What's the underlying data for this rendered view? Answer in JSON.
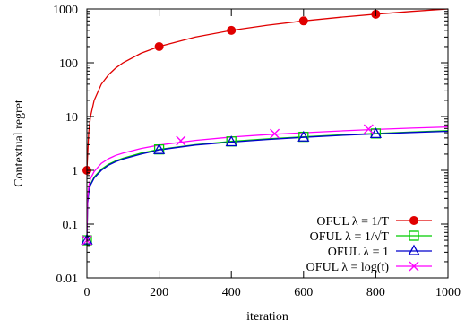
{
  "chart_data": {
    "type": "line",
    "title": "",
    "xlabel": "iteration",
    "ylabel": "Contextual regret",
    "xlim": [
      0,
      1000
    ],
    "ylim": [
      0.01,
      1000
    ],
    "yscale": "log",
    "x_ticks": [
      0,
      200,
      400,
      600,
      800,
      1000
    ],
    "x_tick_labels": [
      "0",
      "200",
      "400",
      "600",
      "800",
      "1000"
    ],
    "y_ticks": [
      0.01,
      0.1,
      1,
      10,
      100,
      1000
    ],
    "y_tick_labels": [
      "0.01",
      "0.1",
      "1",
      "10",
      "100",
      "1000"
    ],
    "legend_position": "bottom-right",
    "grid": false,
    "series": [
      {
        "name": "OFUL λ = 1/T",
        "color": "#e00000",
        "marker": "filled-circle",
        "x": [
          0,
          5,
          10,
          20,
          40,
          60,
          80,
          100,
          150,
          200,
          300,
          400,
          500,
          600,
          700,
          800,
          900,
          1000
        ],
        "y": [
          1,
          5,
          10,
          20,
          40,
          60,
          80,
          100,
          150,
          200,
          300,
          400,
          500,
          600,
          700,
          800,
          900,
          1000
        ],
        "marker_x": [
          0,
          200,
          400,
          600,
          800
        ],
        "marker_y": [
          1,
          200,
          400,
          600,
          800
        ]
      },
      {
        "name": "OFUL λ = 1/√T",
        "color": "#00cc00",
        "marker": "open-square",
        "x": [
          0,
          2,
          5,
          10,
          20,
          40,
          60,
          80,
          100,
          150,
          200,
          300,
          400,
          500,
          600,
          700,
          800,
          900,
          1000
        ],
        "y": [
          0.05,
          0.25,
          0.4,
          0.55,
          0.75,
          1.05,
          1.3,
          1.5,
          1.68,
          2.1,
          2.45,
          3.0,
          3.45,
          3.85,
          4.2,
          4.55,
          4.85,
          5.15,
          5.45
        ],
        "marker_x": [
          0,
          200,
          400,
          600,
          800
        ],
        "marker_y": [
          0.05,
          2.45,
          3.45,
          4.2,
          4.85
        ]
      },
      {
        "name": "OFUL λ = 1",
        "color": "#0000cc",
        "marker": "open-triangle",
        "x": [
          0,
          2,
          5,
          10,
          20,
          40,
          60,
          80,
          100,
          150,
          200,
          300,
          400,
          500,
          600,
          700,
          800,
          900,
          1000
        ],
        "y": [
          0.05,
          0.24,
          0.38,
          0.53,
          0.72,
          1.0,
          1.25,
          1.45,
          1.62,
          2.0,
          2.4,
          2.95,
          3.35,
          3.75,
          4.1,
          4.45,
          4.75,
          5.05,
          5.3
        ],
        "marker_x": [
          0,
          200,
          400,
          600,
          800
        ],
        "marker_y": [
          0.05,
          2.4,
          3.35,
          4.1,
          4.75
        ]
      },
      {
        "name": "OFUL λ = log(t)",
        "color": "#ff00ff",
        "marker": "cross",
        "x": [
          0,
          2,
          5,
          10,
          20,
          40,
          60,
          80,
          100,
          150,
          200,
          300,
          400,
          500,
          600,
          700,
          800,
          900,
          1000
        ],
        "y": [
          0.05,
          0.3,
          0.5,
          0.7,
          0.95,
          1.35,
          1.65,
          1.9,
          2.1,
          2.55,
          2.95,
          3.6,
          4.15,
          4.6,
          5.0,
          5.4,
          5.75,
          6.1,
          6.4
        ],
        "marker_x": [
          0,
          260,
          520,
          780
        ],
        "marker_y": [
          0.05,
          3.55,
          4.8,
          5.85
        ]
      }
    ]
  }
}
